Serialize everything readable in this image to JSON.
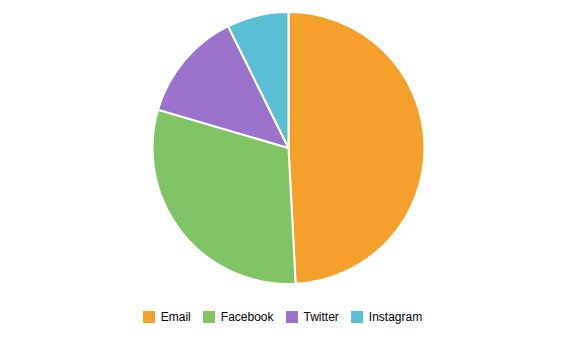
{
  "chart_data": {
    "type": "pie",
    "categories": [
      "Email",
      "Facebook",
      "Twitter",
      "Instagram"
    ],
    "values": [
      1000,
      618,
      267,
      149
    ],
    "colors": [
      "#F5A02A",
      "#80C466",
      "#9B72CC",
      "#5BBFD4"
    ],
    "legend": "bottom"
  }
}
